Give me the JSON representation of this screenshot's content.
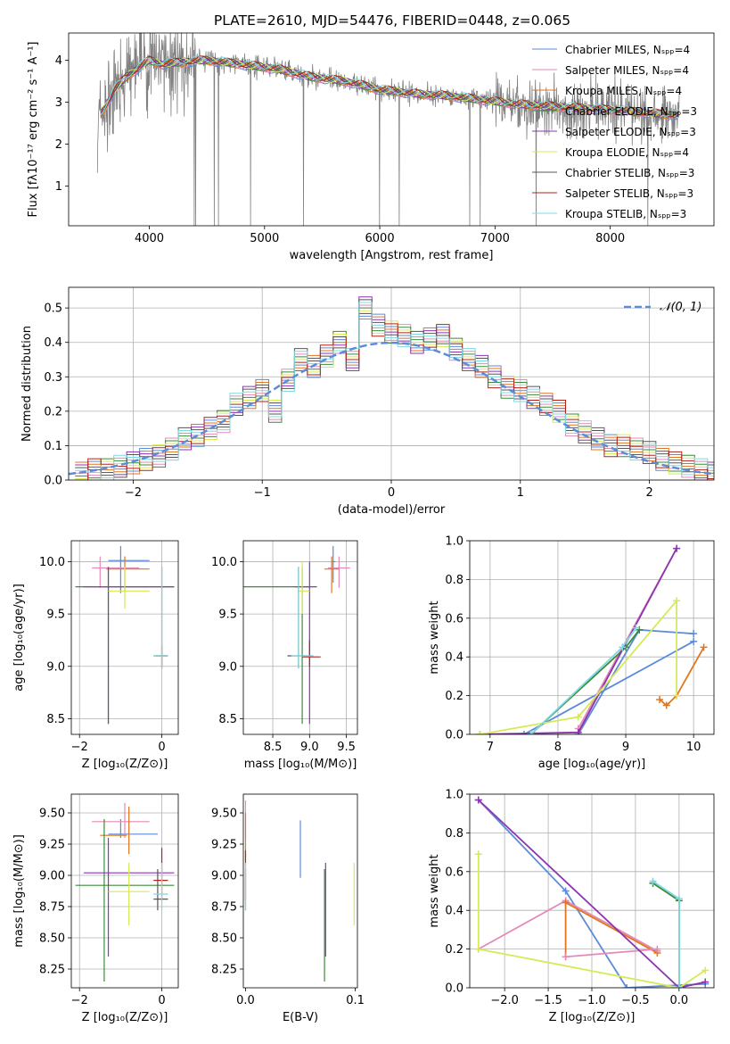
{
  "figure_title": "PLATE=2610, MJD=54476, FIBERID=0448, z=0.065",
  "colors": {
    "chabrier_miles": "#5b8bd9",
    "salpeter_miles": "#e48ab8",
    "kroupa_miles": "#e0761e",
    "chabrier_elodie": "#3b8a3b",
    "salpeter_elodie": "#8c35b0",
    "kroupa_elodie": "#d6ea55",
    "chabrier_stelib": "#555555",
    "salpeter_stelib": "#b0231a",
    "kroupa_stelib": "#7dd8e0",
    "observed": "#808080",
    "normal_curve": "#5b8bd9"
  },
  "chart_data": [
    {
      "id": "spectrum",
      "type": "line",
      "xlabel": "wavelength [Angstrom, rest frame]",
      "ylabel": "Flux [fλ10⁻¹⁷ erg cm⁻² s⁻¹ A⁻¹]",
      "xlim": [
        3300,
        8900
      ],
      "ylim": [
        0.05,
        4.65
      ],
      "xticks": [
        4000,
        5000,
        6000,
        7000,
        8000
      ],
      "yticks": [
        1,
        2,
        3,
        4
      ],
      "grid": false,
      "legend_position": "top-right",
      "legend": [
        {
          "label": "Chabrier MILES, Nₛₚₚ=4",
          "color": "#5b8bd9"
        },
        {
          "label": "Salpeter MILES, Nₛₚₚ=4",
          "color": "#e48ab8"
        },
        {
          "label": "Kroupa MILES, Nₛₚₚ=4",
          "color": "#e0761e"
        },
        {
          "label": "Chabrier ELODIE, Nₛₚₚ=3",
          "color": "#3b8a3b"
        },
        {
          "label": "Salpeter ELODIE, Nₛₚₚ=3",
          "color": "#8c35b0"
        },
        {
          "label": "Kroupa ELODIE, Nₛₚₚ=4",
          "color": "#d6ea55"
        },
        {
          "label": "Chabrier STELIB, Nₛₚₚ=3",
          "color": "#555555"
        },
        {
          "label": "Salpeter STELIB, Nₛₚₚ=3",
          "color": "#b0231a"
        },
        {
          "label": "Kroupa STELIB, Nₛₚₚ=3",
          "color": "#7dd8e0"
        }
      ],
      "continuum": {
        "x": [
          3550,
          3620,
          3700,
          3800,
          3900,
          4000,
          4100,
          4250,
          4500,
          4800,
          5100,
          5400,
          5700,
          6000,
          6300,
          6600,
          6900,
          7200,
          7500,
          7800,
          8100,
          8500
        ],
        "y": [
          2.6,
          2.9,
          3.3,
          3.6,
          3.8,
          4.0,
          3.9,
          3.95,
          4.0,
          3.9,
          3.8,
          3.6,
          3.5,
          3.3,
          3.2,
          3.15,
          3.05,
          2.95,
          2.9,
          2.85,
          2.8,
          2.7
        ]
      }
    },
    {
      "id": "residuals",
      "type": "line",
      "xlabel": "(data-model)/error",
      "ylabel": "Normed distribution",
      "xlim": [
        -2.5,
        2.5
      ],
      "ylim": [
        0,
        0.56
      ],
      "xticks": [
        -2,
        -1,
        0,
        1,
        2
      ],
      "yticks": [
        0.0,
        0.1,
        0.2,
        0.3,
        0.4,
        0.5
      ],
      "grid": true,
      "legend_position": "top-right",
      "legend_label": "𝒩(0,1)",
      "bins": [
        -2.4,
        -2.3,
        -2.2,
        -2.1,
        -2.0,
        -1.9,
        -1.8,
        -1.7,
        -1.6,
        -1.5,
        -1.4,
        -1.3,
        -1.2,
        -1.1,
        -1.0,
        -0.9,
        -0.8,
        -0.7,
        -0.6,
        -0.5,
        -0.4,
        -0.3,
        -0.2,
        -0.1,
        0.0,
        0.1,
        0.2,
        0.3,
        0.4,
        0.5,
        0.6,
        0.7,
        0.8,
        0.9,
        1.0,
        1.1,
        1.2,
        1.3,
        1.4,
        1.5,
        1.6,
        1.7,
        1.8,
        1.9,
        2.0,
        2.1,
        2.2,
        2.3,
        2.4,
        2.5
      ],
      "histogram": [
        0.02,
        0.03,
        0.03,
        0.04,
        0.05,
        0.06,
        0.07,
        0.09,
        0.12,
        0.13,
        0.15,
        0.17,
        0.22,
        0.24,
        0.26,
        0.2,
        0.29,
        0.35,
        0.33,
        0.36,
        0.4,
        0.35,
        0.5,
        0.45,
        0.43,
        0.42,
        0.4,
        0.41,
        0.42,
        0.38,
        0.35,
        0.33,
        0.3,
        0.27,
        0.26,
        0.24,
        0.22,
        0.2,
        0.16,
        0.14,
        0.12,
        0.1,
        0.1,
        0.09,
        0.08,
        0.06,
        0.05,
        0.04,
        0.03,
        0.02
      ]
    },
    {
      "id": "age_vs_Z",
      "type": "scatter",
      "xlabel": "Z [log₁₀(Z/Z⊙)]",
      "ylabel": "age  [log₁₀(age/yr)]",
      "xlim": [
        -2.2,
        0.4
      ],
      "ylim": [
        8.35,
        10.2
      ],
      "xticks": [
        -2,
        0
      ],
      "yticks": [
        8.5,
        9.0,
        9.5,
        10.0
      ],
      "grid": true,
      "points": [
        {
          "c": "chabrier_miles",
          "x": -1.0,
          "y": 10.01,
          "xe": [
            -1.3,
            -0.3
          ],
          "ye": [
            9.7,
            10.15
          ]
        },
        {
          "c": "salpeter_miles",
          "x": -1.5,
          "y": 9.94,
          "xe": [
            -1.7,
            -0.55
          ],
          "ye": [
            9.75,
            10.05
          ]
        },
        {
          "c": "kroupa_miles",
          "x": -0.9,
          "y": 9.93,
          "xe": [
            -1.35,
            -0.3
          ],
          "ye": [
            9.7,
            10.05
          ]
        },
        {
          "c": "chabrier_elodie",
          "x": -1.3,
          "y": 9.76,
          "xe": [
            -2.1,
            0.3
          ],
          "ye": [
            8.45,
            9.95
          ]
        },
        {
          "c": "salpeter_elodie",
          "x": -1.3,
          "y": 9.76,
          "xe": [
            -1.9,
            0.3
          ],
          "ye": [
            8.45,
            9.95
          ]
        },
        {
          "c": "kroupa_elodie",
          "x": -0.9,
          "y": 9.72,
          "xe": [
            -1.3,
            -0.3
          ],
          "ye": [
            9.55,
            9.95
          ]
        },
        {
          "c": "chabrier_stelib",
          "x": 0.0,
          "y": 9.1,
          "xe": [
            -0.2,
            0.15
          ],
          "ye": [
            8.98,
            9.95
          ]
        },
        {
          "c": "salpeter_stelib",
          "x": 0.0,
          "y": 9.1,
          "xe": [
            -0.15,
            0.15
          ],
          "ye": [
            9.0,
            9.2
          ]
        },
        {
          "c": "kroupa_stelib",
          "x": 0.0,
          "y": 9.1,
          "xe": [
            -0.2,
            0.15
          ],
          "ye": [
            8.98,
            9.95
          ]
        }
      ]
    },
    {
      "id": "age_vs_mass",
      "type": "scatter",
      "xlabel": "mass [log₁₀(M/M⊙)]",
      "ylabel": "",
      "xlim": [
        8.1,
        9.65
      ],
      "ylim": [
        8.35,
        10.2
      ],
      "xticks": [
        8.5,
        9.0,
        9.5
      ],
      "yticks": [
        8.5,
        9.0,
        9.5,
        10.0
      ],
      "grid": true,
      "points": [
        {
          "c": "chabrier_miles",
          "x": 9.32,
          "y": 10.0,
          "xe": [
            9.3,
            9.35
          ],
          "ye": [
            9.8,
            10.15
          ]
        },
        {
          "c": "salpeter_miles",
          "x": 9.4,
          "y": 9.94,
          "xe": [
            9.25,
            9.55
          ],
          "ye": [
            9.75,
            10.05
          ]
        },
        {
          "c": "kroupa_miles",
          "x": 9.3,
          "y": 9.93,
          "xe": [
            9.2,
            9.4
          ],
          "ye": [
            9.7,
            10.05
          ]
        },
        {
          "c": "chabrier_elodie",
          "x": 8.9,
          "y": 9.76,
          "xe": [
            8.1,
            9.0
          ],
          "ye": [
            8.45,
            9.95
          ]
        },
        {
          "c": "salpeter_elodie",
          "x": 9.0,
          "y": 9.76,
          "xe": [
            8.8,
            9.1
          ],
          "ye": [
            8.45,
            10.0
          ]
        },
        {
          "c": "kroupa_elodie",
          "x": 8.9,
          "y": 9.72,
          "xe": [
            8.85,
            9.0
          ],
          "ye": [
            9.5,
            10.0
          ]
        },
        {
          "c": "chabrier_stelib",
          "x": 8.85,
          "y": 9.1,
          "xe": [
            8.7,
            9.05
          ],
          "ye": [
            8.98,
            9.95
          ]
        },
        {
          "c": "salpeter_stelib",
          "x": 9.0,
          "y": 9.09,
          "xe": [
            8.9,
            9.15
          ],
          "ye": [
            9.0,
            9.25
          ]
        },
        {
          "c": "kroupa_stelib",
          "x": 8.85,
          "y": 9.1,
          "xe": [
            8.75,
            9.05
          ],
          "ye": [
            8.98,
            9.95
          ]
        }
      ]
    },
    {
      "id": "weight_vs_age",
      "type": "line",
      "xlabel": "age  [log₁₀(age/yr)]",
      "ylabel": "mass weight",
      "xlim": [
        6.7,
        10.3
      ],
      "ylim": [
        0.0,
        1.0
      ],
      "xticks": [
        7,
        8,
        9,
        10
      ],
      "yticks": [
        0.0,
        0.2,
        0.4,
        0.6,
        0.8,
        1.0
      ],
      "grid": true,
      "series": [
        {
          "c": "chabrier_miles",
          "x": [
            7.5,
            10.0
          ],
          "y": [
            0.0,
            0.48
          ]
        },
        {
          "c": "chabrier_miles",
          "x": [
            8.3,
            9.2,
            10.0
          ],
          "y": [
            0.0,
            0.54,
            0.52
          ]
        },
        {
          "c": "salpeter_miles",
          "x": [
            8.3,
            9.75
          ],
          "y": [
            0.03,
            0.96
          ]
        },
        {
          "c": "kroupa_miles",
          "x": [
            9.5,
            9.6,
            9.75,
            10.15
          ],
          "y": [
            0.18,
            0.15,
            0.2,
            0.45
          ]
        },
        {
          "c": "chabrier_elodie",
          "x": [
            7.6,
            9.0,
            9.2
          ],
          "y": [
            0.0,
            0.45,
            0.54
          ]
        },
        {
          "c": "salpeter_elodie",
          "x": [
            6.85,
            8.3,
            9.75
          ],
          "y": [
            0.0,
            0.01,
            0.96
          ]
        },
        {
          "c": "kroupa_elodie",
          "x": [
            6.85,
            8.3,
            9.75,
            9.75
          ],
          "y": [
            0.0,
            0.09,
            0.69,
            0.2
          ]
        },
        {
          "c": "kroupa_stelib",
          "x": [
            7.6,
            8.95,
            9.15
          ],
          "y": [
            0.0,
            0.45,
            0.55
          ]
        }
      ]
    },
    {
      "id": "mass_vs_Z",
      "type": "scatter",
      "xlabel": "Z [log₁₀(Z/Z⊙)]",
      "ylabel": "mass [log₁₀(M/M⊙)]",
      "xlim": [
        -2.2,
        0.4
      ],
      "ylim": [
        8.1,
        9.65
      ],
      "xticks": [
        -2,
        0
      ],
      "yticks": [
        8.25,
        8.5,
        8.75,
        9.0,
        9.25,
        9.5
      ],
      "grid": true,
      "points": [
        {
          "c": "chabrier_miles",
          "x": -1.0,
          "y": 9.33,
          "xe": [
            -1.3,
            -0.1
          ],
          "ye": [
            9.3,
            9.45
          ]
        },
        {
          "c": "salpeter_miles",
          "x": -0.9,
          "y": 9.43,
          "xe": [
            -1.7,
            -0.3
          ],
          "ye": [
            9.3,
            9.58
          ]
        },
        {
          "c": "kroupa_miles",
          "x": -0.8,
          "y": 9.32,
          "xe": [
            -1.5,
            -0.85
          ],
          "ye": [
            9.17,
            9.55
          ]
        },
        {
          "c": "chabrier_elodie",
          "x": -1.4,
          "y": 8.92,
          "xe": [
            -2.1,
            0.3
          ],
          "ye": [
            8.15,
            9.45
          ]
        },
        {
          "c": "salpeter_elodie",
          "x": -1.3,
          "y": 9.02,
          "xe": [
            -1.9,
            0.3
          ],
          "ye": [
            8.35,
            9.3
          ]
        },
        {
          "c": "kroupa_elodie",
          "x": -0.8,
          "y": 8.87,
          "xe": [
            -1.3,
            -0.3
          ],
          "ye": [
            8.6,
            9.1
          ]
        },
        {
          "c": "chabrier_stelib",
          "x": -0.1,
          "y": 8.81,
          "xe": [
            -0.2,
            0.15
          ],
          "ye": [
            8.72,
            9.05
          ]
        },
        {
          "c": "salpeter_stelib",
          "x": 0.0,
          "y": 8.96,
          "xe": [
            -0.2,
            0.15
          ],
          "ye": [
            8.8,
            9.22
          ]
        },
        {
          "c": "kroupa_stelib",
          "x": 0.0,
          "y": 8.85,
          "xe": [
            -0.2,
            0.15
          ],
          "ye": [
            8.72,
            9.1
          ]
        }
      ]
    },
    {
      "id": "mass_vs_ebv",
      "type": "scatter",
      "xlabel": "E(B-V)",
      "ylabel": "",
      "xlim": [
        -0.002,
        0.102
      ],
      "ylim": [
        8.1,
        9.65
      ],
      "xticks": [
        0.0,
        0.1
      ],
      "yticks": [
        8.25,
        8.5,
        8.75,
        9.0,
        9.25,
        9.5
      ],
      "grid": false,
      "points": [
        {
          "c": "chabrier_miles",
          "x": 0.05,
          "ye": [
            8.98,
            9.44
          ]
        },
        {
          "c": "salpeter_miles",
          "x": 0.0,
          "ye": [
            9.3,
            9.6
          ]
        },
        {
          "c": "kroupa_miles",
          "x": 0.0,
          "ye": [
            9.12,
            9.5
          ]
        },
        {
          "c": "chabrier_elodie",
          "x": 0.072,
          "ye": [
            8.15,
            9.05
          ]
        },
        {
          "c": "salpeter_elodie",
          "x": 0.073,
          "ye": [
            8.35,
            9.1
          ]
        },
        {
          "c": "kroupa_elodie",
          "x": 0.099,
          "ye": [
            8.6,
            9.1
          ]
        },
        {
          "c": "chabrier_stelib",
          "x": 0.0,
          "ye": [
            8.72,
            9.05
          ]
        },
        {
          "c": "salpeter_stelib",
          "x": 0.0,
          "ye": [
            8.8,
            9.2
          ]
        },
        {
          "c": "kroupa_stelib",
          "x": 0.0,
          "ye": [
            8.72,
            9.1
          ]
        }
      ]
    },
    {
      "id": "weight_vs_Z",
      "type": "line",
      "xlabel": "Z [log₁₀(Z/Z⊙)]",
      "ylabel": "mass weight",
      "xlim": [
        -2.4,
        0.4
      ],
      "ylim": [
        0.0,
        1.0
      ],
      "xticks": [
        -2.0,
        -1.5,
        -1.0,
        -0.5,
        0.0
      ],
      "yticks": [
        0.0,
        0.2,
        0.4,
        0.6,
        0.8,
        1.0
      ],
      "grid": true,
      "series": [
        {
          "c": "chabrier_miles",
          "x": [
            -2.3,
            -1.3,
            -0.6,
            0.3
          ],
          "y": [
            0.97,
            0.5,
            0.0,
            0.02
          ]
        },
        {
          "c": "salpeter_miles",
          "x": [
            -2.3,
            -1.3,
            -0.25
          ],
          "y": [
            0.2,
            0.45,
            0.19
          ]
        },
        {
          "c": "kroupa_miles",
          "x": [
            -1.3,
            -1.3,
            -0.25
          ],
          "y": [
            0.16,
            0.44,
            0.18
          ]
        },
        {
          "c": "salpeter_miles",
          "x": [
            -1.3,
            -0.25
          ],
          "y": [
            0.16,
            0.2
          ]
        },
        {
          "c": "chabrier_elodie",
          "x": [
            -0.3,
            0.0,
            0.0
          ],
          "y": [
            0.54,
            0.45,
            0.0
          ]
        },
        {
          "c": "salpeter_elodie",
          "x": [
            -2.3,
            0.0,
            0.3
          ],
          "y": [
            0.97,
            0.0,
            0.03
          ]
        },
        {
          "c": "kroupa_elodie",
          "x": [
            -2.3,
            -2.3,
            0.0,
            0.3
          ],
          "y": [
            0.69,
            0.2,
            0.0,
            0.09
          ]
        },
        {
          "c": "kroupa_stelib",
          "x": [
            -0.3,
            0.0,
            0.0
          ],
          "y": [
            0.55,
            0.46,
            0.0
          ]
        }
      ]
    }
  ]
}
